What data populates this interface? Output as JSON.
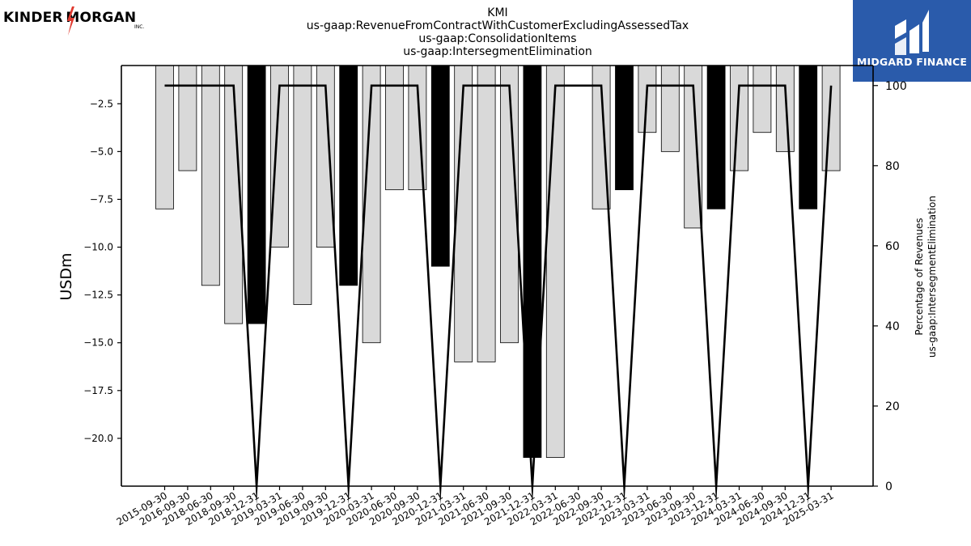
{
  "header": {
    "title_lines": [
      "KMI",
      "us-gaap:RevenueFromContractWithCustomerExcludingAssessedTax",
      "us-gaap:ConsolidationItems",
      "us-gaap:IntersegmentElimination"
    ]
  },
  "logos": {
    "left": {
      "brand": "KINDER MORGAN",
      "inc": "INC."
    },
    "right": {
      "name": "MIDGARD FINANCE",
      "background": "#2a5bab"
    }
  },
  "chart_data": {
    "type": "bar",
    "categories": [
      "2015-09-30",
      "2016-09-30",
      "2018-06-30",
      "2018-09-30",
      "2018-12-31",
      "2019-03-31",
      "2019-06-30",
      "2019-09-30",
      "2019-12-31",
      "2020-03-31",
      "2020-06-30",
      "2020-09-30",
      "2020-12-31",
      "2021-03-31",
      "2021-06-30",
      "2021-09-30",
      "2021-12-31",
      "2022-03-31",
      "2022-06-30",
      "2022-09-30",
      "2022-12-31",
      "2023-03-31",
      "2023-06-30",
      "2023-09-30",
      "2023-12-31",
      "2024-03-31",
      "2024-06-30",
      "2024-09-30",
      "2024-12-31",
      "2025-03-31"
    ],
    "series": [
      {
        "kind": "bar",
        "axis": "left",
        "values": [
          -8,
          -6,
          -12,
          -14,
          -14,
          -10,
          -13,
          -10,
          -12,
          -15,
          -7,
          -7,
          -11,
          -16,
          -16,
          -15,
          -21,
          -21,
          null,
          -8,
          -7,
          -4,
          -5,
          -9,
          -8,
          -6,
          -4,
          -5,
          -8,
          -6
        ],
        "colors": [
          "#d9d9d9",
          "#d9d9d9",
          "#d9d9d9",
          "#d9d9d9",
          "#000000",
          "#d9d9d9",
          "#d9d9d9",
          "#d9d9d9",
          "#000000",
          "#d9d9d9",
          "#d9d9d9",
          "#d9d9d9",
          "#000000",
          "#d9d9d9",
          "#d9d9d9",
          "#d9d9d9",
          "#000000",
          "#d9d9d9",
          "#d9d9d9",
          "#d9d9d9",
          "#000000",
          "#d9d9d9",
          "#d9d9d9",
          "#d9d9d9",
          "#000000",
          "#d9d9d9",
          "#d9d9d9",
          "#d9d9d9",
          "#000000",
          "#d9d9d9"
        ]
      },
      {
        "kind": "line",
        "axis": "right",
        "values": [
          100,
          100,
          100,
          100,
          0,
          100,
          100,
          100,
          0,
          100,
          100,
          100,
          0,
          100,
          100,
          100,
          0,
          100,
          100,
          100,
          0,
          100,
          100,
          100,
          0,
          100,
          100,
          100,
          0,
          100
        ]
      }
    ],
    "ylabel": "USDm",
    "ylim": [
      -22.5,
      -0.5
    ],
    "yticks": [
      -2.5,
      -5.0,
      -7.5,
      -10.0,
      -12.5,
      -15.0,
      -17.5,
      -20.0
    ],
    "ytick_labels": [
      "−2.5",
      "−5.0",
      "−7.5",
      "−10.0",
      "−12.5",
      "−15.0",
      "−17.5",
      "−20.0"
    ],
    "y2label_lines": [
      "Percentage of Revenues",
      "us-gaap:IntersegmentElimination"
    ],
    "y2lim": [
      0,
      105
    ],
    "y2ticks": [
      0,
      20,
      40,
      60,
      80,
      100
    ],
    "y2tick_labels": [
      "0",
      "20",
      "40",
      "60",
      "80",
      "100"
    ],
    "grid": false,
    "bar_colors": {
      "normal": "#d9d9d9",
      "highlight": "#000000",
      "edge": "#000000"
    },
    "line_color": "#000000"
  }
}
